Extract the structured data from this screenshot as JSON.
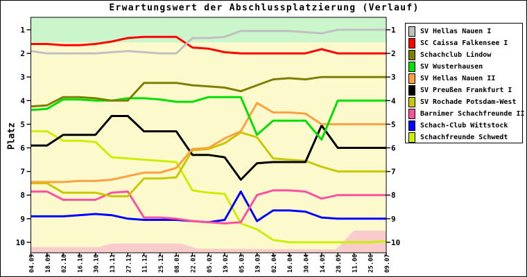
{
  "page": {
    "title": "Erwartungswert der Abschlussplatzierung (Verlauf)"
  },
  "chart_data": {
    "type": "line",
    "title": "Erwartungswert der Abschlussplatzierung (Verlauf)",
    "xlabel": "",
    "ylabel": "Platz",
    "y_axis_inverted": true,
    "y_ticks": [
      1,
      2,
      3,
      4,
      5,
      6,
      7,
      8,
      9,
      10
    ],
    "ylim": [
      0.5,
      10.45
    ],
    "grid": false,
    "legend_position": "right",
    "x_labels": [
      "04.09",
      "18.09",
      "02.10",
      "16.10",
      "30.10",
      "13.11",
      "27.11",
      "11.12",
      "25.12",
      "08.01",
      "22.01",
      "05.02",
      "19.02",
      "05.03",
      "19.03",
      "02.04",
      "16.04",
      "30.04",
      "14.05",
      "28.05",
      "11.06",
      "25.06",
      "09.07"
    ],
    "background_bands": {
      "midfield_color": "#FCFACD",
      "promotion_color": "#CBF5CA",
      "relegation_color": "#F8CCCB",
      "promotion_zone_max_rank": 1.53,
      "relegation_boundary_points": [
        [
          0,
          10.2
        ],
        [
          4.2,
          10.2
        ],
        [
          5,
          10.05
        ],
        [
          9.3,
          10.05
        ],
        [
          10.3,
          10.27
        ],
        [
          18.9,
          10.3
        ],
        [
          20,
          9.5
        ],
        [
          22,
          9.5
        ]
      ]
    },
    "series": [
      {
        "name": "SV Hellas Nauen I",
        "color": "#C0C0C0",
        "values": [
          1.9,
          2.0,
          2.0,
          2.0,
          2.0,
          1.95,
          1.9,
          1.95,
          2.0,
          2.0,
          1.35,
          1.35,
          1.3,
          1.05,
          1.05,
          1.05,
          1.05,
          1.1,
          1.15,
          1.0,
          1.0,
          1.0,
          1.0
        ]
      },
      {
        "name": "SC Caissa Falkensee I",
        "color": "#FF0000",
        "values": [
          1.6,
          1.6,
          1.65,
          1.65,
          1.6,
          1.5,
          1.35,
          1.3,
          1.3,
          1.3,
          1.75,
          1.8,
          1.95,
          2.0,
          2.0,
          2.0,
          2.0,
          2.0,
          1.82,
          2.0,
          2.0,
          2.0,
          2.0
        ]
      },
      {
        "name": "Schachclub Lindow",
        "color": "#7E7E00",
        "values": [
          4.25,
          4.2,
          3.85,
          3.85,
          3.9,
          4.0,
          4.0,
          3.25,
          3.25,
          3.25,
          3.35,
          3.4,
          3.45,
          3.6,
          3.35,
          3.1,
          3.05,
          3.1,
          3.0,
          3.0,
          3.0,
          3.0,
          3.0
        ]
      },
      {
        "name": "SV Wusterhausen",
        "color": "#00E000",
        "values": [
          4.4,
          4.35,
          3.95,
          3.95,
          4.0,
          4.0,
          3.9,
          3.9,
          3.95,
          4.05,
          4.05,
          3.85,
          3.85,
          3.85,
          5.45,
          4.85,
          4.85,
          4.85,
          5.65,
          4.0,
          4.0,
          4.0,
          4.0
        ]
      },
      {
        "name": "SV Hellas Nauen II",
        "color": "#FFA040",
        "values": [
          7.45,
          7.45,
          7.45,
          7.4,
          7.4,
          7.35,
          7.2,
          7.05,
          7.05,
          6.85,
          6.05,
          6.0,
          5.6,
          5.3,
          4.1,
          4.5,
          4.5,
          4.55,
          5.0,
          5.0,
          5.0,
          5.0,
          5.0
        ]
      },
      {
        "name": "SV Preußen Frankfurt I",
        "color": "#000000",
        "values": [
          5.9,
          5.9,
          5.45,
          5.45,
          5.45,
          4.65,
          4.65,
          5.3,
          5.3,
          5.3,
          6.3,
          6.3,
          6.4,
          7.35,
          6.65,
          6.6,
          6.6,
          6.6,
          5.05,
          6.0,
          6.0,
          6.0,
          6.0
        ]
      },
      {
        "name": "SV Rochade Potsdam-West",
        "color": "#C8C800",
        "values": [
          7.5,
          7.5,
          7.9,
          7.9,
          7.9,
          8.05,
          8.05,
          7.3,
          7.3,
          7.25,
          6.1,
          6.05,
          5.8,
          5.35,
          5.55,
          6.45,
          6.5,
          6.55,
          6.8,
          7.0,
          7.0,
          7.0,
          7.0
        ]
      },
      {
        "name": "Barnimer Schachfreunde II",
        "color": "#FF4FA0",
        "values": [
          7.85,
          7.85,
          8.2,
          8.2,
          8.2,
          7.9,
          7.85,
          8.95,
          8.95,
          9.0,
          9.1,
          9.15,
          9.2,
          9.15,
          8.0,
          7.8,
          7.8,
          7.85,
          8.15,
          8.0,
          8.0,
          8.0,
          8.0
        ]
      },
      {
        "name": "Schach-Club Wittstock",
        "color": "#0000FF",
        "values": [
          8.9,
          8.9,
          8.9,
          8.85,
          8.8,
          8.85,
          9.0,
          9.05,
          9.05,
          9.05,
          9.1,
          9.15,
          9.05,
          7.85,
          9.1,
          8.65,
          8.65,
          8.7,
          8.95,
          9.0,
          9.0,
          9.0,
          9.0
        ]
      },
      {
        "name": "Schachfreunde Schwedt",
        "color": "#CCEE00",
        "values": [
          5.3,
          5.3,
          5.7,
          5.7,
          5.75,
          6.4,
          6.45,
          6.5,
          6.55,
          6.6,
          7.8,
          7.9,
          7.95,
          9.2,
          9.45,
          9.9,
          10.0,
          10.0,
          10.0,
          10.0,
          10.0,
          10.0,
          9.95
        ]
      }
    ]
  }
}
